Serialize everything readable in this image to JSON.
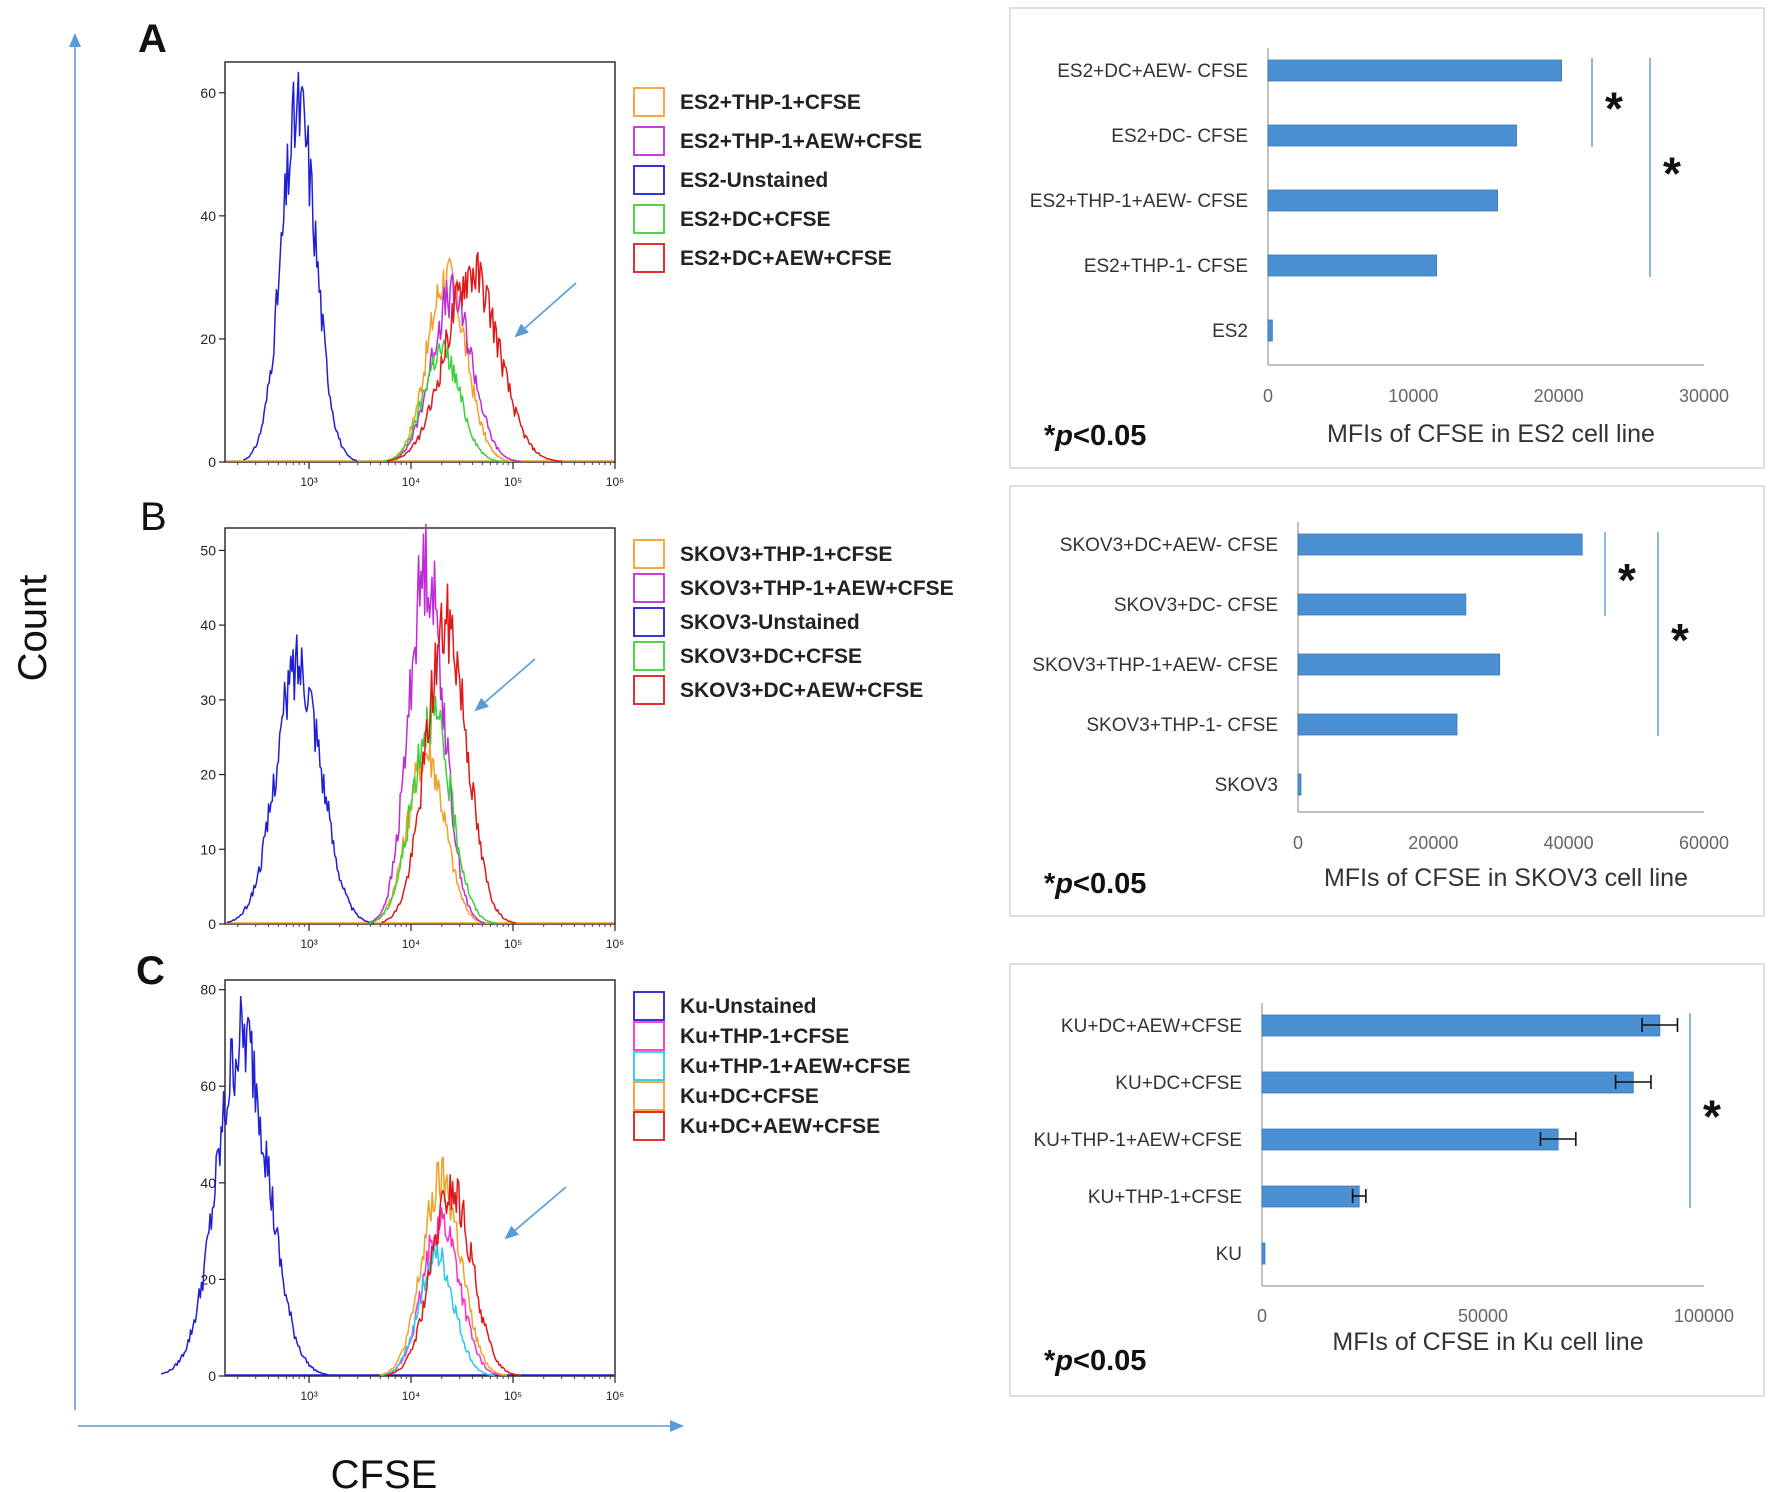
{
  "figure": {
    "y_axis_label": "Count",
    "x_axis_label": "CFSE",
    "significance_mark": "*",
    "colors": {
      "blue": "#1f1fd6",
      "orange": "#f0a12a",
      "magenta": "#c02bd8",
      "pink": "#ff2fc8",
      "green": "#3ad23a",
      "red": "#e01818",
      "cyan": "#2cc8ec",
      "bar": "#4a90d2",
      "axis_arrow": "#5b9bd5"
    }
  },
  "chart_data": [
    {
      "type": "line",
      "panel": "A",
      "title": "",
      "xlabel": "CFSE",
      "ylabel": "Count",
      "x_scale": "log",
      "xlim": [
        150,
        1000000
      ],
      "ylim": [
        0,
        65
      ],
      "yticks": [
        0,
        20,
        40,
        60
      ],
      "xticks": [
        "10³",
        "10⁴",
        "10⁵",
        "10⁶"
      ],
      "series": [
        {
          "name": "ES2+THP-1+CFSE",
          "color": "#f0a12a",
          "peak_log": 4.35,
          "peak": 30,
          "width": 0.19
        },
        {
          "name": "ES2+THP-1+AEW+CFSE",
          "color": "#c02bd8",
          "peak_log": 4.4,
          "peak": 27,
          "width": 0.2
        },
        {
          "name": "ES2-Unstained",
          "color": "#1f1fd6",
          "peak_log": 2.9,
          "peak": 57,
          "width": 0.17
        },
        {
          "name": "ES2+DC+CFSE",
          "color": "#3ad23a",
          "peak_log": 4.3,
          "peak": 18,
          "width": 0.18
        },
        {
          "name": "ES2+DC+AEW+CFSE",
          "color": "#e01818",
          "peak_log": 4.6,
          "peak": 31,
          "width": 0.26
        }
      ]
    },
    {
      "type": "line",
      "panel": "B",
      "title": "",
      "xlabel": "CFSE",
      "ylabel": "Count",
      "x_scale": "log",
      "xlim": [
        150,
        1000000
      ],
      "ylim": [
        0,
        53
      ],
      "yticks": [
        0,
        10,
        20,
        30,
        40,
        50
      ],
      "xticks": [
        "10³",
        "10⁴",
        "10⁵",
        "10⁶"
      ],
      "series": [
        {
          "name": "SKOV3+THP-1+CFSE",
          "color": "#f0a12a",
          "peak_log": 4.15,
          "peak": 23,
          "width": 0.18
        },
        {
          "name": "SKOV3+THP-1+AEW+CFSE",
          "color": "#c02bd8",
          "peak_log": 4.15,
          "peak": 48,
          "width": 0.17
        },
        {
          "name": "SKOV3-Unstained",
          "color": "#1f1fd6",
          "peak_log": 2.9,
          "peak": 35,
          "width": 0.22
        },
        {
          "name": "SKOV3+DC+CFSE",
          "color": "#3ad23a",
          "peak_log": 4.2,
          "peak": 28,
          "width": 0.19
        },
        {
          "name": "SKOV3+DC+AEW+CFSE",
          "color": "#e01818",
          "peak_log": 4.35,
          "peak": 40,
          "width": 0.2
        }
      ]
    },
    {
      "type": "line",
      "panel": "C",
      "title": "",
      "xlabel": "CFSE",
      "ylabel": "Count",
      "x_scale": "log",
      "xlim": [
        150,
        1000000
      ],
      "ylim": [
        0,
        82
      ],
      "yticks": [
        0,
        20,
        40,
        60,
        80
      ],
      "xticks": [
        "10³",
        "10⁴",
        "10⁵",
        "10⁶"
      ],
      "series": [
        {
          "name": "Ku-Unstained",
          "color": "#1f1fd6",
          "peak_log": 2.35,
          "peak": 70,
          "width": 0.25
        },
        {
          "name": "Ku+THP-1+CFSE",
          "color": "#ff2fc8",
          "peak_log": 4.3,
          "peak": 32,
          "width": 0.18
        },
        {
          "name": "Ku+THP-1+AEW+CFSE",
          "color": "#2cc8ec",
          "peak_log": 4.25,
          "peak": 25,
          "width": 0.17
        },
        {
          "name": "Ku+DC+CFSE",
          "color": "#f0a12a",
          "peak_log": 4.3,
          "peak": 40,
          "width": 0.19
        },
        {
          "name": "Ku+DC+AEW+CFSE",
          "color": "#e01818",
          "peak_log": 4.4,
          "peak": 38,
          "width": 0.2
        }
      ]
    },
    {
      "type": "bar",
      "orientation": "horizontal",
      "panel": "A",
      "title": "",
      "xlabel": "MFIs of CFSE in ES2 cell line",
      "ylabel": "",
      "xlim": [
        0,
        30000
      ],
      "xticks": [
        "0",
        "10000",
        "20000",
        "30000"
      ],
      "categories": [
        "ES2+DC+AEW- CFSE",
        "ES2+DC- CFSE",
        "ES2+THP-1+AEW- CFSE",
        "ES2+THP-1- CFSE",
        "ES2"
      ],
      "values": [
        20200,
        17100,
        15800,
        11600,
        300
      ],
      "errors": [
        0,
        0,
        0,
        0,
        0
      ],
      "note": "*p<0.05",
      "note_italic": "p",
      "note_suffix": "<0.05",
      "significance": [
        {
          "from": 0,
          "to": 1,
          "label": "*"
        },
        {
          "from": 0,
          "to": 3,
          "label": "*"
        }
      ]
    },
    {
      "type": "bar",
      "orientation": "horizontal",
      "panel": "B",
      "title": "",
      "xlabel": "MFIs of CFSE in SKOV3 cell line",
      "ylabel": "",
      "xlim": [
        0,
        60000
      ],
      "xticks": [
        "0",
        "20000",
        "40000",
        "60000"
      ],
      "categories": [
        "SKOV3+DC+AEW- CFSE",
        "SKOV3+DC- CFSE",
        "SKOV3+THP-1+AEW- CFSE",
        "SKOV3+THP-1- CFSE",
        "SKOV3"
      ],
      "values": [
        42000,
        24800,
        29800,
        23500,
        300
      ],
      "errors": [
        0,
        0,
        0,
        0,
        0
      ],
      "note": "*p<0.05",
      "note_italic": "p",
      "note_suffix": "<0.05",
      "significance": [
        {
          "from": 0,
          "to": 1,
          "label": "*"
        },
        {
          "from": 0,
          "to": 3,
          "label": "*"
        }
      ]
    },
    {
      "type": "bar",
      "orientation": "horizontal",
      "panel": "C",
      "title": "",
      "xlabel": "MFIs of CFSE in Ku cell line",
      "ylabel": "",
      "xlim": [
        0,
        100000
      ],
      "xticks": [
        "0",
        "50000",
        "100000"
      ],
      "categories": [
        "KU+DC+AEW+CFSE",
        "KU+DC+CFSE",
        "KU+THP-1+AEW+CFSE",
        "KU+THP-1+CFSE",
        "KU"
      ],
      "values": [
        90000,
        84000,
        67000,
        22000,
        300
      ],
      "errors": [
        4000,
        4000,
        4000,
        1500,
        0
      ],
      "note": "*p<0.05",
      "note_italic": "p",
      "note_suffix": "<0.05",
      "significance": [
        {
          "from": 0,
          "to": 3,
          "label": "*"
        }
      ]
    }
  ]
}
